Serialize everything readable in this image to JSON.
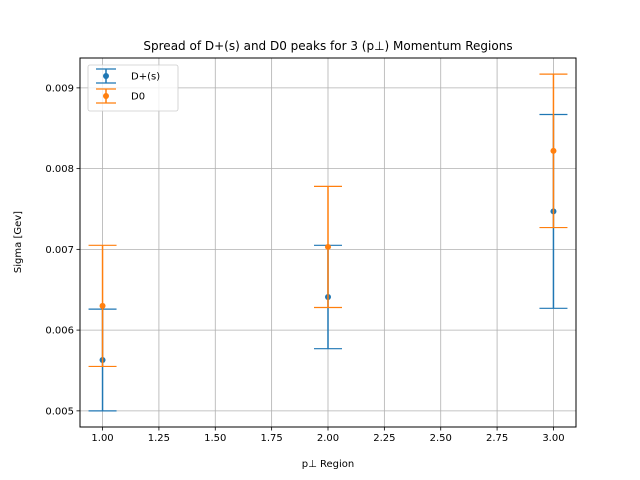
{
  "chart_data": {
    "type": "scatter",
    "title": "Spread of D+(s) and D0 peaks for 3 (p⊥) Momentum Regions",
    "xlabel": "p⊥ Region",
    "ylabel": "Sigma [Gev]",
    "xlim": [
      0.9,
      3.1
    ],
    "ylim": [
      0.0048,
      0.00937
    ],
    "xticks": [
      1.0,
      1.25,
      1.5,
      1.75,
      2.0,
      2.25,
      2.5,
      2.75,
      3.0
    ],
    "xtick_labels": [
      "1.00",
      "1.25",
      "1.50",
      "1.75",
      "2.00",
      "2.25",
      "2.50",
      "2.75",
      "3.00"
    ],
    "yticks": [
      0.005,
      0.006,
      0.007,
      0.008,
      0.009
    ],
    "ytick_labels": [
      "0.005",
      "0.006",
      "0.007",
      "0.008",
      "0.009"
    ],
    "grid": true,
    "legend_position": "top-left",
    "series": [
      {
        "name": "D+(s)",
        "color": "#1f77b4",
        "x": [
          1,
          2,
          3
        ],
        "y": [
          0.00563,
          0.00641,
          0.00747
        ],
        "yerr": [
          0.00063,
          0.00064,
          0.0012
        ]
      },
      {
        "name": "D0",
        "color": "#ff7f0e",
        "x": [
          1,
          2,
          3
        ],
        "y": [
          0.0063,
          0.00703,
          0.00822
        ],
        "yerr": [
          0.00075,
          0.00075,
          0.00095
        ]
      }
    ]
  }
}
